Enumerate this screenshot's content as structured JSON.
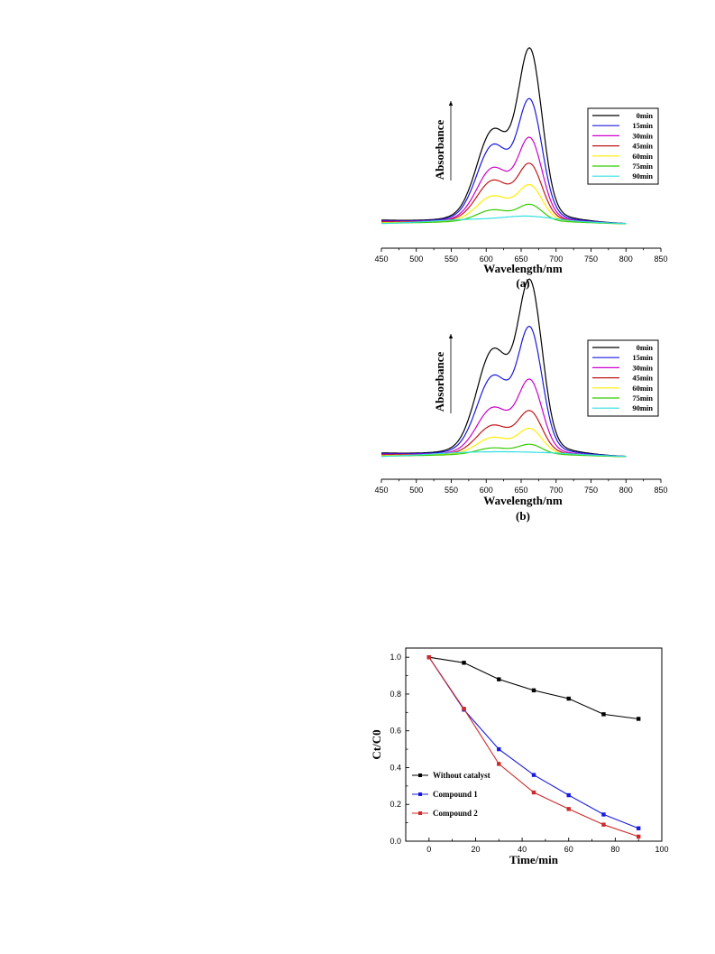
{
  "chart_data": [
    {
      "id": "a",
      "type": "line",
      "panel_label": "(a)",
      "xlabel": "Wavelength/nm",
      "ylabel": "Absorbance",
      "xlim": [
        450,
        850
      ],
      "xticks": [
        450,
        500,
        550,
        600,
        650,
        700,
        750,
        800,
        850
      ],
      "y_relative": true,
      "legend_position": "top-right",
      "series": [
        {
          "name": "0min",
          "color": "#000000",
          "shoulder": 0.52,
          "peak": 1.0
        },
        {
          "name": "15min",
          "color": "#1a1adf",
          "shoulder": 0.44,
          "peak": 0.7
        },
        {
          "name": "30min",
          "color": "#cc00cc",
          "shoulder": 0.31,
          "peak": 0.48
        },
        {
          "name": "45min",
          "color": "#c01818",
          "shoulder": 0.24,
          "peak": 0.33
        },
        {
          "name": "60min",
          "color": "#ffee00",
          "shoulder": 0.15,
          "peak": 0.21
        },
        {
          "name": "75min",
          "color": "#33cc00",
          "shoulder": 0.07,
          "peak": 0.1
        },
        {
          "name": "90min",
          "color": "#33e0e0",
          "shoulder": 0.02,
          "peak": 0.02
        }
      ]
    },
    {
      "id": "b",
      "type": "line",
      "panel_label": "(b)",
      "xlabel": "Wavelength/nm",
      "ylabel": "Absorbance",
      "xlim": [
        450,
        850
      ],
      "xticks": [
        450,
        500,
        550,
        600,
        650,
        700,
        750,
        800,
        850
      ],
      "y_relative": true,
      "legend_position": "top-right",
      "series": [
        {
          "name": "0min",
          "color": "#000000",
          "shoulder": 0.6,
          "peak": 1.0
        },
        {
          "name": "15min",
          "color": "#1a1adf",
          "shoulder": 0.45,
          "peak": 0.73
        },
        {
          "name": "30min",
          "color": "#cc00cc",
          "shoulder": 0.27,
          "peak": 0.43
        },
        {
          "name": "45min",
          "color": "#c01818",
          "shoulder": 0.17,
          "peak": 0.25
        },
        {
          "name": "60min",
          "color": "#ffee00",
          "shoulder": 0.1,
          "peak": 0.15
        },
        {
          "name": "75min",
          "color": "#33cc00",
          "shoulder": 0.04,
          "peak": 0.06
        },
        {
          "name": "90min",
          "color": "#33e0e0",
          "shoulder": 0.0,
          "peak": 0.0
        }
      ]
    },
    {
      "id": "c",
      "type": "line",
      "xlabel": "Time/min",
      "ylabel": "Ct/C0",
      "xlim": [
        -10,
        100
      ],
      "ylim": [
        0,
        1.05
      ],
      "xticks": [
        0,
        20,
        40,
        60,
        80,
        100
      ],
      "yticks": [
        0.0,
        0.2,
        0.4,
        0.6,
        0.8,
        1.0
      ],
      "ytick_labels": [
        "0.0",
        "0.2",
        "0.4",
        "0.6",
        "0.8",
        "1.0"
      ],
      "marker": "square",
      "legend_position": "bottom-left",
      "series": [
        {
          "name": "Without catalyst",
          "color": "#000000",
          "x": [
            0,
            15,
            30,
            45,
            60,
            75,
            90
          ],
          "y": [
            1.0,
            0.97,
            0.88,
            0.82,
            0.775,
            0.69,
            0.665
          ]
        },
        {
          "name": "Compound 1",
          "color": "#1a1adf",
          "x": [
            0,
            15,
            30,
            45,
            60,
            75,
            90
          ],
          "y": [
            1.0,
            0.715,
            0.5,
            0.36,
            0.25,
            0.145,
            0.07
          ]
        },
        {
          "name": "Compound 2",
          "color": "#cc2a2a",
          "x": [
            0,
            15,
            30,
            45,
            60,
            75,
            90
          ],
          "y": [
            1.0,
            0.72,
            0.42,
            0.265,
            0.175,
            0.09,
            0.025
          ]
        }
      ]
    }
  ]
}
